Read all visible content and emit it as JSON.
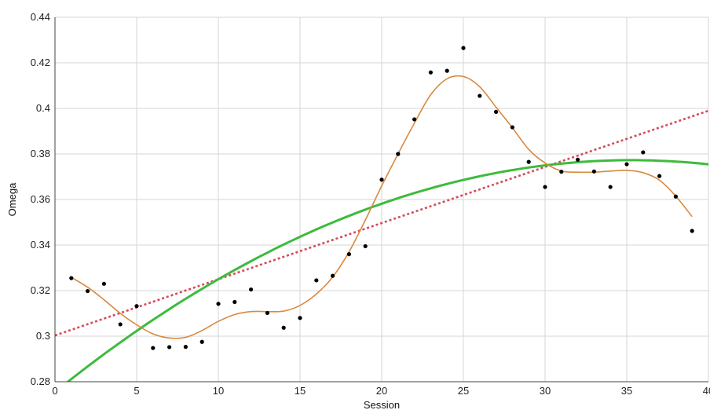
{
  "chart_data": {
    "type": "scatter",
    "xlabel": "Session",
    "ylabel": "Omega",
    "xlim": [
      0,
      40
    ],
    "ylim": [
      0.28,
      0.44
    ],
    "x_ticks": [
      0,
      5,
      10,
      15,
      20,
      25,
      30,
      35,
      40
    ],
    "y_ticks": [
      0.28,
      0.3,
      0.32,
      0.34,
      0.36,
      0.38,
      0.4,
      0.42,
      0.44
    ],
    "x_tick_labels": [
      "0",
      "5",
      "10",
      "15",
      "20",
      "25",
      "30",
      "35",
      "40"
    ],
    "y_tick_labels": [
      "0.28",
      "0.3",
      "0.32",
      "0.34",
      "0.36",
      "0.38",
      "0.4",
      "0.42",
      "0.44"
    ],
    "grid": true,
    "colors": {
      "points": "#000000",
      "smoother": "#d9893f",
      "quadratic": "#3dbb3d",
      "linear": "#d64a5a",
      "grid": "#d6d6d6"
    },
    "points": {
      "x": [
        1,
        2,
        3,
        4,
        5,
        6,
        7,
        8,
        9,
        10,
        11,
        12,
        13,
        14,
        15,
        16,
        17,
        18,
        19,
        20,
        21,
        22,
        23,
        24,
        25,
        26,
        27,
        28,
        29,
        30,
        31,
        32,
        33,
        34,
        35,
        36,
        37,
        38,
        39
      ],
      "y": [
        0.3255,
        0.3198,
        0.323,
        0.3052,
        0.3132,
        0.2948,
        0.2952,
        0.2953,
        0.2975,
        0.3142,
        0.315,
        0.3205,
        0.3102,
        0.3037,
        0.308,
        0.3245,
        0.3265,
        0.336,
        0.3395,
        0.3687,
        0.38,
        0.3952,
        0.4158,
        0.4165,
        0.4265,
        0.4055,
        0.3985,
        0.3917,
        0.3765,
        0.3655,
        0.3722,
        0.3775,
        0.3723,
        0.3655,
        0.3755,
        0.3807,
        0.3703,
        0.3613,
        0.3462
      ]
    },
    "smoother": {
      "x": [
        1,
        2,
        3,
        4,
        5,
        6,
        7,
        8,
        9,
        10,
        11,
        12,
        13,
        14,
        15,
        16,
        17,
        18,
        19,
        20,
        21,
        22,
        23,
        24,
        25,
        26,
        27,
        28,
        29,
        30,
        31,
        32,
        33,
        34,
        35,
        36,
        37,
        38,
        39
      ],
      "y": [
        0.3258,
        0.3215,
        0.316,
        0.31,
        0.305,
        0.301,
        0.2992,
        0.2995,
        0.3025,
        0.3065,
        0.3095,
        0.3108,
        0.3108,
        0.311,
        0.3135,
        0.3185,
        0.326,
        0.337,
        0.351,
        0.366,
        0.38,
        0.3935,
        0.406,
        0.413,
        0.414,
        0.4095,
        0.4005,
        0.3915,
        0.382,
        0.376,
        0.3725,
        0.372,
        0.372,
        0.3725,
        0.3728,
        0.3718,
        0.3685,
        0.3615,
        0.3525
      ]
    },
    "quadratic_fit": {
      "coefficients": [
        0.2755,
        0.005767,
        -8.17e-05
      ],
      "x_range": [
        0.7,
        40
      ]
    },
    "linear_fit": {
      "coefficients": [
        0.3003,
        0.002467
      ],
      "x_range": [
        0,
        40
      ]
    }
  }
}
